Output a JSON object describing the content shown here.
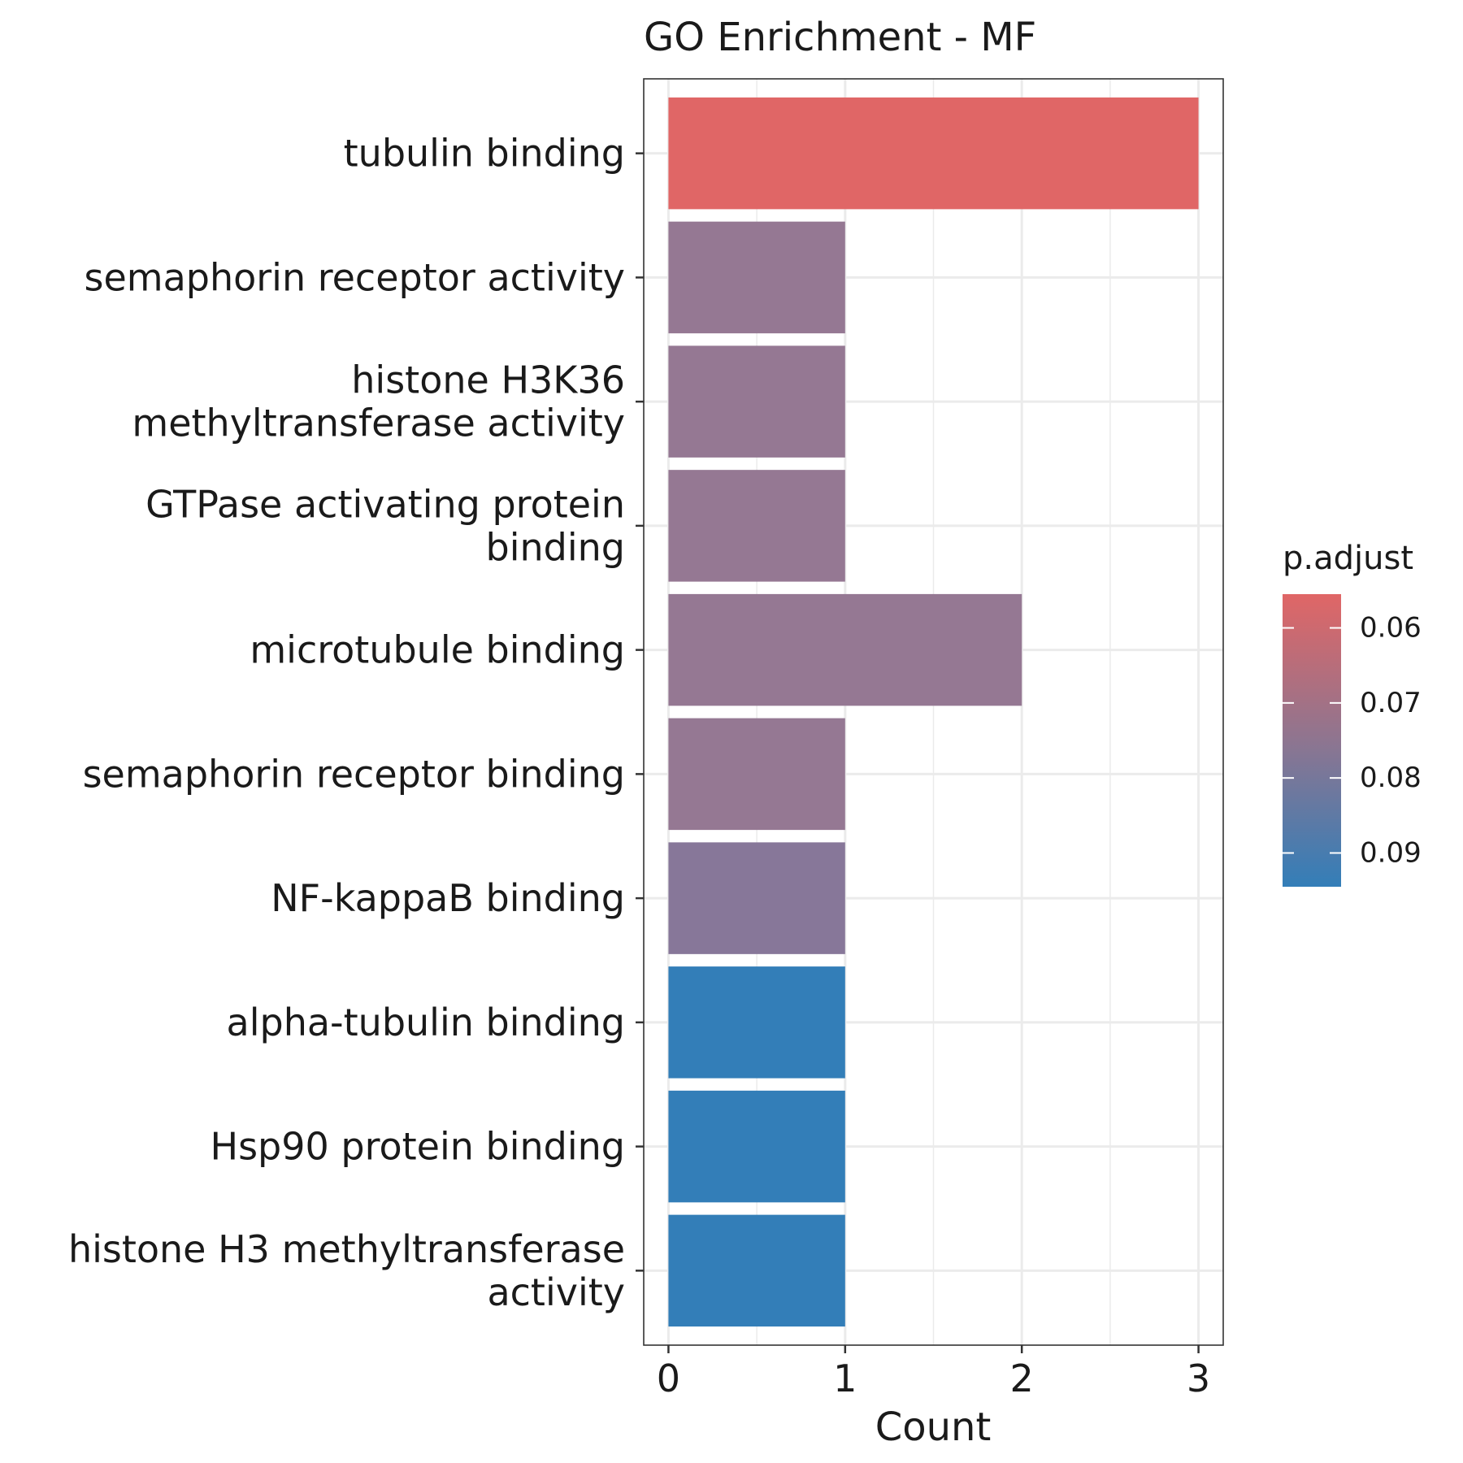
{
  "chart_data": {
    "type": "bar",
    "orientation": "horizontal",
    "title": "GO Enrichment - MF",
    "xlabel": "Count",
    "ylabel": "",
    "xlim": [
      -0.14,
      3.14
    ],
    "x_ticks": [
      "0",
      "1",
      "2",
      "3"
    ],
    "grid": true,
    "categories": [
      [
        "tubulin binding"
      ],
      [
        "semaphorin receptor activity"
      ],
      [
        "histone H3K36",
        "methyltransferase activity"
      ],
      [
        "GTPase activating protein",
        "binding"
      ],
      [
        "microtubule binding"
      ],
      [
        "semaphorin receptor binding"
      ],
      [
        "NF-kappaB binding"
      ],
      [
        "alpha-tubulin binding"
      ],
      [
        "Hsp90 protein binding"
      ],
      [
        "histone H3 methyltransferase",
        "activity"
      ]
    ],
    "values": [
      3,
      1,
      1,
      1,
      2,
      1,
      1,
      1,
      1,
      1
    ],
    "p_adjust": [
      0.0555,
      0.0752,
      0.0752,
      0.0752,
      0.0752,
      0.0752,
      0.0775,
      0.0945,
      0.0945,
      0.0945
    ],
    "colors": [
      "#e06666",
      "#957893",
      "#957893",
      "#957893",
      "#957893",
      "#957893",
      "#877799",
      "#337eb8",
      "#337eb8",
      "#337eb8"
    ],
    "legend": {
      "title": "p.adjust",
      "position": "right",
      "ticks": [
        "0.06",
        "0.07",
        "0.08",
        "0.09"
      ],
      "tick_values": [
        0.06,
        0.07,
        0.08,
        0.09
      ],
      "range": [
        0.0555,
        0.0945
      ],
      "color_low_p": "#e06666",
      "color_high_p": "#337eb8"
    }
  }
}
